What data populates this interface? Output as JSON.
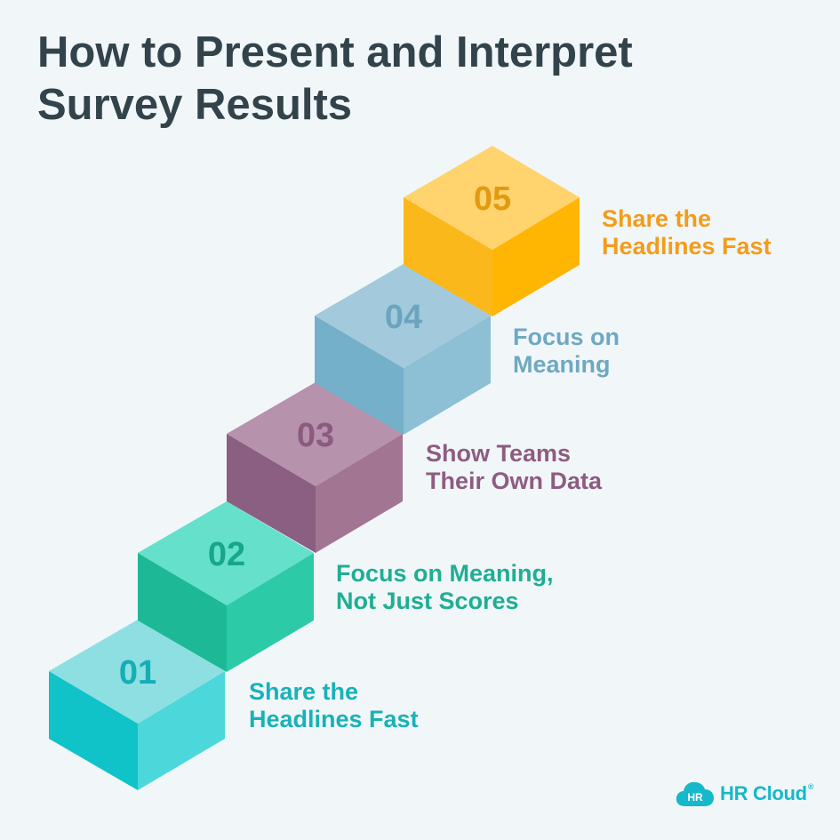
{
  "title": {
    "line1": "How to Present and Interpret",
    "line2": "Survey Results"
  },
  "steps": [
    {
      "number": "01",
      "label_line1": "Share the",
      "label_line2": "Headlines Fast",
      "colors": {
        "top": "#8edfe2",
        "left": "#0fc3c8",
        "right": "#4cd8db",
        "number": "#14aeb6",
        "label": "#17b2b9"
      }
    },
    {
      "number": "02",
      "label_line1": "Focus on Meaning,",
      "label_line2": "Not Just Scores",
      "colors": {
        "top": "#65e0cb",
        "left": "#1db996",
        "right": "#2dcaa8",
        "number": "#18a688",
        "label": "#1fae93"
      }
    },
    {
      "number": "03",
      "label_line1": "Show Teams",
      "label_line2": "Their Own Data",
      "colors": {
        "top": "#b692ad",
        "left": "#8a5f82",
        "right": "#a27593",
        "number": "#8a5a7f",
        "label": "#8e5c81"
      }
    },
    {
      "number": "04",
      "label_line1": "Focus on",
      "label_line2": "Meaning",
      "colors": {
        "top": "#a2cadc",
        "left": "#74b0c9",
        "right": "#8dbfd5",
        "number": "#6aa4bf",
        "label": "#6fa8c3"
      }
    },
    {
      "number": "05",
      "label_line1": "Share the",
      "label_line2": "Headlines Fast",
      "colors": {
        "top": "#ffd36d",
        "left": "#fbb81a",
        "right": "#feb602",
        "number": "#e19a12",
        "label": "#f39c1a"
      }
    }
  ],
  "logo": {
    "badge": "HR",
    "name": "HR Cloud",
    "mark": "®",
    "color": "#16b8c9",
    "icon": "cloud-icon"
  }
}
